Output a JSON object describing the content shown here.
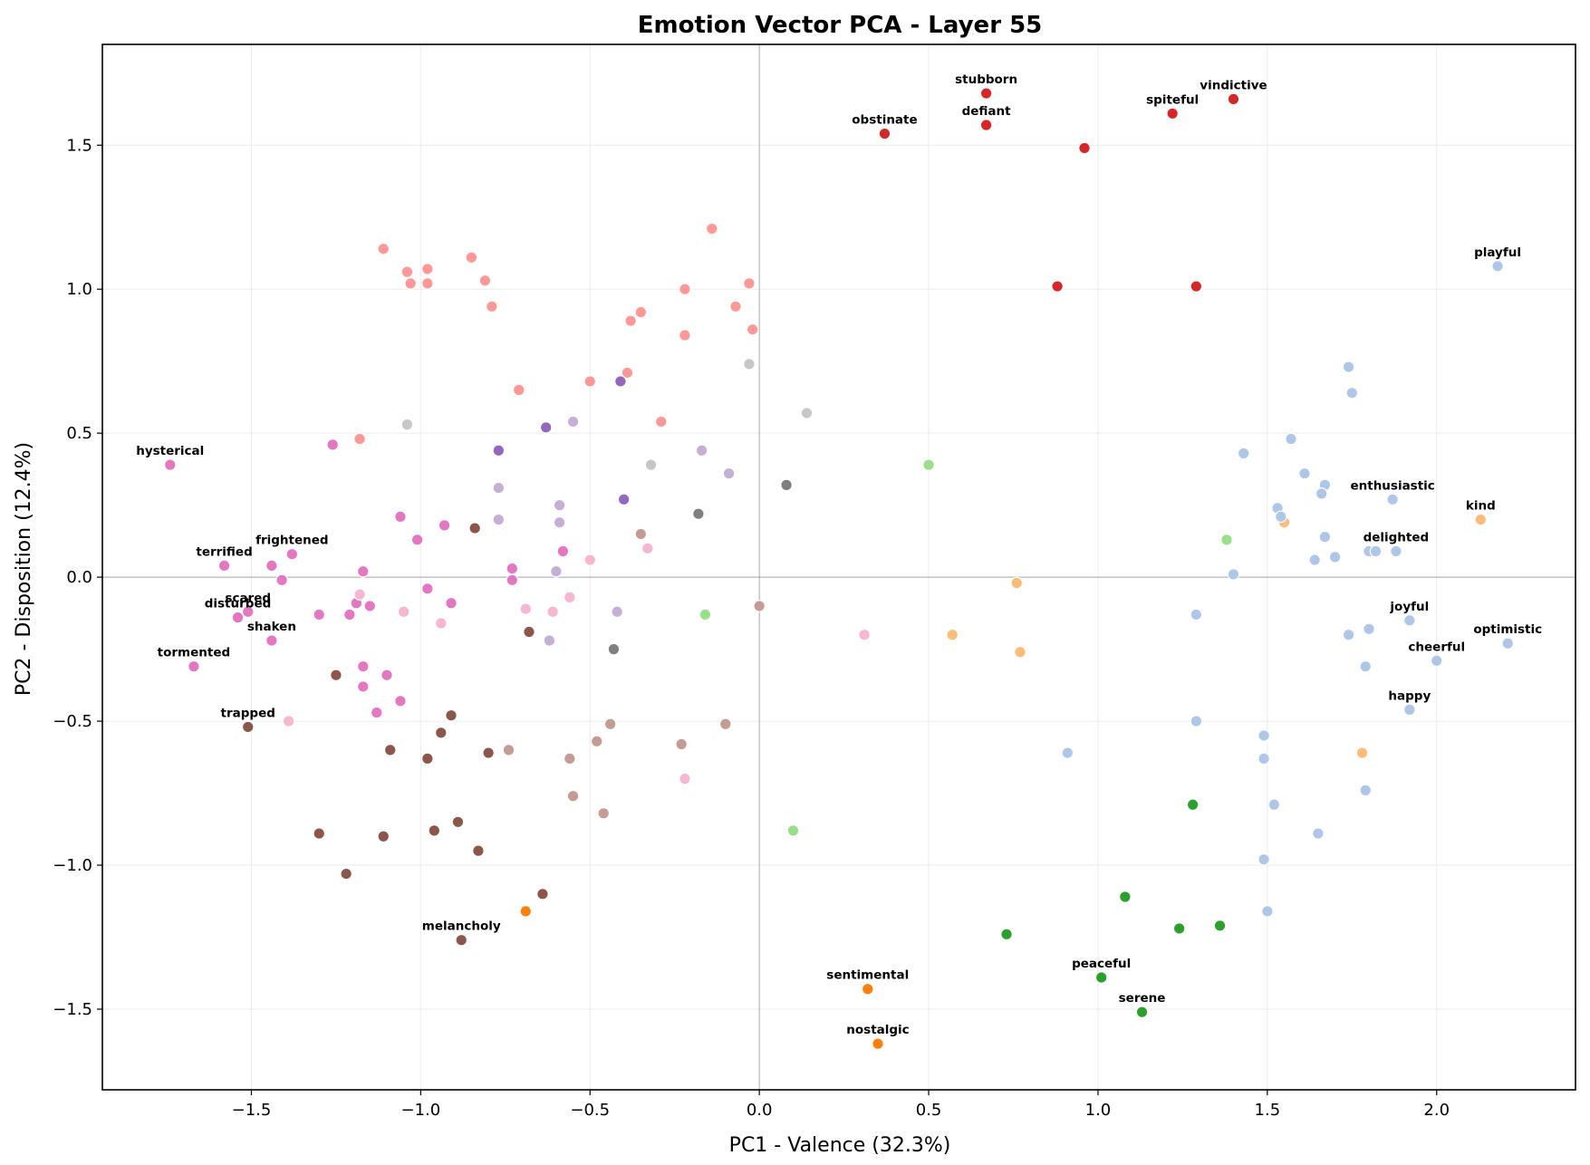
{
  "chart_data": {
    "type": "scatter",
    "title": "Emotion Vector PCA - Layer 55",
    "xlabel": "PC1 - Valence (32.3%)",
    "ylabel": "PC2 - Disposition (12.4%)",
    "xlim": [
      -1.94,
      2.41
    ],
    "ylim": [
      -1.78,
      1.85
    ],
    "xticks": [
      -1.5,
      -1.0,
      -0.5,
      0.0,
      0.5,
      1.0,
      1.5,
      2.0
    ],
    "yticks": [
      -1.5,
      -1.0,
      -0.5,
      0.0,
      0.5,
      1.0,
      1.5
    ],
    "xtick_labels": [
      "−1.5",
      "−1.0",
      "−0.5",
      "0.0",
      "0.5",
      "1.0",
      "1.5",
      "2.0"
    ],
    "ytick_labels": [
      "−1.5",
      "−1.0",
      "−0.5",
      "0.0",
      "0.5",
      "1.0",
      "1.5"
    ],
    "grid": true,
    "zero_lines": true,
    "colors": {
      "red": "#d62728",
      "salmon": "#ff9896",
      "purple": "#9467bd",
      "lavender": "#c5b0d5",
      "brown": "#8c564b",
      "tan": "#c49c94",
      "pink": "#e377c2",
      "lightpink": "#f7b6d2",
      "gray": "#7f7f7f",
      "lightgray": "#c7c7c7",
      "lightblue": "#aec7e8",
      "orange": "#ff7f0e",
      "peach": "#ffbb78",
      "green": "#2ca02c",
      "lightgreen": "#98df8a"
    },
    "points": [
      {
        "x": 0.67,
        "y": 1.68,
        "c": "red",
        "label": "stubborn"
      },
      {
        "x": 0.67,
        "y": 1.57,
        "c": "red",
        "label": "defiant"
      },
      {
        "x": 0.37,
        "y": 1.54,
        "c": "red",
        "label": "obstinate"
      },
      {
        "x": 1.22,
        "y": 1.61,
        "c": "red",
        "label": "spiteful"
      },
      {
        "x": 1.4,
        "y": 1.66,
        "c": "red",
        "label": "vindictive"
      },
      {
        "x": 0.96,
        "y": 1.49,
        "c": "red"
      },
      {
        "x": 0.88,
        "y": 1.01,
        "c": "red"
      },
      {
        "x": 1.29,
        "y": 1.01,
        "c": "red"
      },
      {
        "x": -1.11,
        "y": 1.14,
        "c": "salmon"
      },
      {
        "x": -1.04,
        "y": 1.06,
        "c": "salmon"
      },
      {
        "x": -1.03,
        "y": 1.02,
        "c": "salmon"
      },
      {
        "x": -0.98,
        "y": 1.07,
        "c": "salmon"
      },
      {
        "x": -0.98,
        "y": 1.02,
        "c": "salmon"
      },
      {
        "x": -0.85,
        "y": 1.11,
        "c": "salmon"
      },
      {
        "x": -0.81,
        "y": 1.03,
        "c": "salmon"
      },
      {
        "x": -0.79,
        "y": 0.94,
        "c": "salmon"
      },
      {
        "x": -0.14,
        "y": 1.21,
        "c": "salmon"
      },
      {
        "x": -0.22,
        "y": 1.0,
        "c": "salmon"
      },
      {
        "x": -0.03,
        "y": 1.02,
        "c": "salmon"
      },
      {
        "x": -0.07,
        "y": 0.94,
        "c": "salmon"
      },
      {
        "x": -0.35,
        "y": 0.92,
        "c": "salmon"
      },
      {
        "x": -0.38,
        "y": 0.89,
        "c": "salmon"
      },
      {
        "x": -0.02,
        "y": 0.86,
        "c": "salmon"
      },
      {
        "x": -0.22,
        "y": 0.84,
        "c": "salmon"
      },
      {
        "x": -0.39,
        "y": 0.71,
        "c": "salmon"
      },
      {
        "x": -0.5,
        "y": 0.68,
        "c": "salmon"
      },
      {
        "x": -0.71,
        "y": 0.65,
        "c": "salmon"
      },
      {
        "x": -0.29,
        "y": 0.54,
        "c": "salmon"
      },
      {
        "x": -1.18,
        "y": 0.48,
        "c": "salmon"
      },
      {
        "x": -0.41,
        "y": 0.68,
        "c": "purple"
      },
      {
        "x": -0.63,
        "y": 0.52,
        "c": "purple"
      },
      {
        "x": -0.77,
        "y": 0.44,
        "c": "purple"
      },
      {
        "x": -0.4,
        "y": 0.27,
        "c": "purple"
      },
      {
        "x": -0.55,
        "y": 0.54,
        "c": "lavender"
      },
      {
        "x": -0.17,
        "y": 0.44,
        "c": "lavender"
      },
      {
        "x": -0.09,
        "y": 0.36,
        "c": "lavender"
      },
      {
        "x": -0.77,
        "y": 0.31,
        "c": "lavender"
      },
      {
        "x": -0.59,
        "y": 0.25,
        "c": "lavender"
      },
      {
        "x": -0.77,
        "y": 0.2,
        "c": "lavender"
      },
      {
        "x": -0.59,
        "y": 0.19,
        "c": "lavender"
      },
      {
        "x": -0.6,
        "y": 0.02,
        "c": "lavender"
      },
      {
        "x": -0.42,
        "y": -0.12,
        "c": "lavender"
      },
      {
        "x": -0.62,
        "y": -0.22,
        "c": "lavender"
      },
      {
        "x": -0.03,
        "y": 0.74,
        "c": "lightgray"
      },
      {
        "x": 0.14,
        "y": 0.57,
        "c": "lightgray"
      },
      {
        "x": -1.04,
        "y": 0.53,
        "c": "lightgray"
      },
      {
        "x": -0.32,
        "y": 0.39,
        "c": "lightgray"
      },
      {
        "x": 0.08,
        "y": 0.32,
        "c": "gray"
      },
      {
        "x": -0.18,
        "y": 0.22,
        "c": "gray"
      },
      {
        "x": -0.43,
        "y": -0.25,
        "c": "gray"
      },
      {
        "x": -1.74,
        "y": 0.39,
        "c": "pink",
        "label": "hysterical"
      },
      {
        "x": -1.58,
        "y": 0.04,
        "c": "pink",
        "label": "terrified"
      },
      {
        "x": -1.38,
        "y": 0.08,
        "c": "pink",
        "label": "frightened"
      },
      {
        "x": -1.51,
        "y": -0.12,
        "c": "pink",
        "label": "scared"
      },
      {
        "x": -1.54,
        "y": -0.14,
        "c": "pink",
        "label": "disturbed"
      },
      {
        "x": -1.44,
        "y": -0.22,
        "c": "pink",
        "label": "shaken"
      },
      {
        "x": -1.67,
        "y": -0.31,
        "c": "pink",
        "label": "tormented"
      },
      {
        "x": -1.44,
        "y": 0.04,
        "c": "pink"
      },
      {
        "x": -1.41,
        "y": -0.01,
        "c": "pink"
      },
      {
        "x": -1.26,
        "y": 0.46,
        "c": "pink"
      },
      {
        "x": -1.06,
        "y": 0.21,
        "c": "pink"
      },
      {
        "x": -0.93,
        "y": 0.18,
        "c": "pink"
      },
      {
        "x": -1.01,
        "y": 0.13,
        "c": "pink"
      },
      {
        "x": -1.17,
        "y": 0.02,
        "c": "pink"
      },
      {
        "x": -0.73,
        "y": 0.03,
        "c": "pink"
      },
      {
        "x": -0.73,
        "y": -0.01,
        "c": "pink"
      },
      {
        "x": -0.58,
        "y": 0.09,
        "c": "pink"
      },
      {
        "x": -0.98,
        "y": -0.04,
        "c": "pink"
      },
      {
        "x": -1.19,
        "y": -0.09,
        "c": "pink"
      },
      {
        "x": -1.15,
        "y": -0.1,
        "c": "pink"
      },
      {
        "x": -0.91,
        "y": -0.09,
        "c": "pink"
      },
      {
        "x": -1.3,
        "y": -0.13,
        "c": "pink"
      },
      {
        "x": -1.21,
        "y": -0.13,
        "c": "pink"
      },
      {
        "x": -1.17,
        "y": -0.31,
        "c": "pink"
      },
      {
        "x": -1.1,
        "y": -0.34,
        "c": "pink"
      },
      {
        "x": -1.17,
        "y": -0.38,
        "c": "pink"
      },
      {
        "x": -1.06,
        "y": -0.43,
        "c": "pink"
      },
      {
        "x": -1.13,
        "y": -0.47,
        "c": "pink"
      },
      {
        "x": -1.18,
        "y": -0.06,
        "c": "lightpink"
      },
      {
        "x": -1.05,
        "y": -0.12,
        "c": "lightpink"
      },
      {
        "x": -0.94,
        "y": -0.16,
        "c": "lightpink"
      },
      {
        "x": -0.69,
        "y": -0.11,
        "c": "lightpink"
      },
      {
        "x": -0.61,
        "y": -0.12,
        "c": "lightpink"
      },
      {
        "x": -0.56,
        "y": -0.07,
        "c": "lightpink"
      },
      {
        "x": -0.5,
        "y": 0.06,
        "c": "lightpink"
      },
      {
        "x": -0.33,
        "y": 0.1,
        "c": "lightpink"
      },
      {
        "x": 0.31,
        "y": -0.2,
        "c": "lightpink"
      },
      {
        "x": -1.39,
        "y": -0.5,
        "c": "lightpink"
      },
      {
        "x": -0.22,
        "y": -0.7,
        "c": "lightpink"
      },
      {
        "x": -1.51,
        "y": -0.52,
        "c": "brown",
        "label": "trapped"
      },
      {
        "x": -0.88,
        "y": -1.26,
        "c": "brown",
        "label": "melancholy"
      },
      {
        "x": -0.84,
        "y": 0.17,
        "c": "brown"
      },
      {
        "x": -0.68,
        "y": -0.19,
        "c": "brown"
      },
      {
        "x": -1.25,
        "y": -0.34,
        "c": "brown"
      },
      {
        "x": -0.91,
        "y": -0.48,
        "c": "brown"
      },
      {
        "x": -0.94,
        "y": -0.54,
        "c": "brown"
      },
      {
        "x": -1.09,
        "y": -0.6,
        "c": "brown"
      },
      {
        "x": -0.98,
        "y": -0.63,
        "c": "brown"
      },
      {
        "x": -0.8,
        "y": -0.61,
        "c": "brown"
      },
      {
        "x": -1.3,
        "y": -0.89,
        "c": "brown"
      },
      {
        "x": -1.11,
        "y": -0.9,
        "c": "brown"
      },
      {
        "x": -0.96,
        "y": -0.88,
        "c": "brown"
      },
      {
        "x": -0.89,
        "y": -0.85,
        "c": "brown"
      },
      {
        "x": -0.83,
        "y": -0.95,
        "c": "brown"
      },
      {
        "x": -1.22,
        "y": -1.03,
        "c": "brown"
      },
      {
        "x": -0.64,
        "y": -1.1,
        "c": "brown"
      },
      {
        "x": -0.35,
        "y": 0.15,
        "c": "tan"
      },
      {
        "x": 0.0,
        "y": -0.1,
        "c": "tan"
      },
      {
        "x": -0.44,
        "y": -0.51,
        "c": "tan"
      },
      {
        "x": -0.1,
        "y": -0.51,
        "c": "tan"
      },
      {
        "x": -0.48,
        "y": -0.57,
        "c": "tan"
      },
      {
        "x": -0.74,
        "y": -0.6,
        "c": "tan"
      },
      {
        "x": -0.23,
        "y": -0.58,
        "c": "tan"
      },
      {
        "x": -0.56,
        "y": -0.63,
        "c": "tan"
      },
      {
        "x": -0.55,
        "y": -0.76,
        "c": "tan"
      },
      {
        "x": -0.46,
        "y": -0.82,
        "c": "tan"
      },
      {
        "x": 0.5,
        "y": 0.39,
        "c": "lightgreen"
      },
      {
        "x": 1.38,
        "y": 0.13,
        "c": "lightgreen"
      },
      {
        "x": -0.16,
        "y": -0.13,
        "c": "lightgreen"
      },
      {
        "x": 0.1,
        "y": -0.88,
        "c": "lightgreen"
      },
      {
        "x": 1.28,
        "y": -0.79,
        "c": "green"
      },
      {
        "x": 1.08,
        "y": -1.11,
        "c": "green"
      },
      {
        "x": 0.73,
        "y": -1.24,
        "c": "green"
      },
      {
        "x": 1.24,
        "y": -1.22,
        "c": "green"
      },
      {
        "x": 1.36,
        "y": -1.21,
        "c": "green"
      },
      {
        "x": 1.01,
        "y": -1.39,
        "c": "green",
        "label": "peaceful"
      },
      {
        "x": 1.13,
        "y": -1.51,
        "c": "green",
        "label": "serene"
      },
      {
        "x": -0.69,
        "y": -1.16,
        "c": "orange"
      },
      {
        "x": 0.32,
        "y": -1.43,
        "c": "orange",
        "label": "sentimental"
      },
      {
        "x": 0.35,
        "y": -1.62,
        "c": "orange",
        "label": "nostalgic"
      },
      {
        "x": 2.13,
        "y": 0.2,
        "c": "peach",
        "label": "kind"
      },
      {
        "x": 1.55,
        "y": 0.19,
        "c": "peach"
      },
      {
        "x": 0.76,
        "y": -0.02,
        "c": "peach"
      },
      {
        "x": 0.57,
        "y": -0.2,
        "c": "peach"
      },
      {
        "x": 0.77,
        "y": -0.26,
        "c": "peach"
      },
      {
        "x": 1.78,
        "y": -0.61,
        "c": "peach"
      },
      {
        "x": 2.18,
        "y": 1.08,
        "c": "lightblue",
        "label": "playful"
      },
      {
        "x": 1.87,
        "y": 0.27,
        "c": "lightblue",
        "label": "enthusiastic"
      },
      {
        "x": 1.88,
        "y": 0.09,
        "c": "lightblue",
        "label": "delighted"
      },
      {
        "x": 1.92,
        "y": -0.15,
        "c": "lightblue",
        "label": "joyful"
      },
      {
        "x": 2.21,
        "y": -0.23,
        "c": "lightblue",
        "label": "optimistic"
      },
      {
        "x": 2.0,
        "y": -0.29,
        "c": "lightblue",
        "label": "cheerful"
      },
      {
        "x": 1.92,
        "y": -0.46,
        "c": "lightblue",
        "label": "happy"
      },
      {
        "x": 1.74,
        "y": 0.73,
        "c": "lightblue"
      },
      {
        "x": 1.75,
        "y": 0.64,
        "c": "lightblue"
      },
      {
        "x": 1.57,
        "y": 0.48,
        "c": "lightblue"
      },
      {
        "x": 1.43,
        "y": 0.43,
        "c": "lightblue"
      },
      {
        "x": 1.61,
        "y": 0.36,
        "c": "lightblue"
      },
      {
        "x": 1.67,
        "y": 0.32,
        "c": "lightblue"
      },
      {
        "x": 1.66,
        "y": 0.29,
        "c": "lightblue"
      },
      {
        "x": 1.53,
        "y": 0.24,
        "c": "lightblue"
      },
      {
        "x": 1.54,
        "y": 0.21,
        "c": "lightblue"
      },
      {
        "x": 1.67,
        "y": 0.14,
        "c": "lightblue"
      },
      {
        "x": 1.8,
        "y": 0.09,
        "c": "lightblue"
      },
      {
        "x": 1.82,
        "y": 0.09,
        "c": "lightblue"
      },
      {
        "x": 1.7,
        "y": 0.07,
        "c": "lightblue"
      },
      {
        "x": 1.64,
        "y": 0.06,
        "c": "lightblue"
      },
      {
        "x": 1.4,
        "y": 0.01,
        "c": "lightblue"
      },
      {
        "x": 1.29,
        "y": -0.13,
        "c": "lightblue"
      },
      {
        "x": 1.8,
        "y": -0.18,
        "c": "lightblue"
      },
      {
        "x": 1.74,
        "y": -0.2,
        "c": "lightblue"
      },
      {
        "x": 1.79,
        "y": -0.31,
        "c": "lightblue"
      },
      {
        "x": 1.29,
        "y": -0.5,
        "c": "lightblue"
      },
      {
        "x": 1.49,
        "y": -0.55,
        "c": "lightblue"
      },
      {
        "x": 0.91,
        "y": -0.61,
        "c": "lightblue"
      },
      {
        "x": 1.49,
        "y": -0.63,
        "c": "lightblue"
      },
      {
        "x": 1.79,
        "y": -0.74,
        "c": "lightblue"
      },
      {
        "x": 1.52,
        "y": -0.79,
        "c": "lightblue"
      },
      {
        "x": 1.65,
        "y": -0.89,
        "c": "lightblue"
      },
      {
        "x": 1.49,
        "y": -0.98,
        "c": "lightblue"
      },
      {
        "x": 1.5,
        "y": -1.16,
        "c": "lightblue"
      }
    ]
  }
}
